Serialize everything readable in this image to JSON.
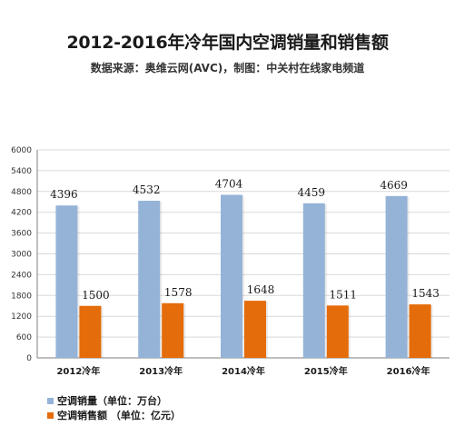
{
  "title": "2012-2016年冷年国内空调销量和销售额",
  "subtitle": "数据来源：奥维云网(AVC)，制图：中关村在线家电频道",
  "colors": {
    "sales_volume": "#95b3d7",
    "sales_amount": "#e46c0a",
    "grid": "#d9d9d9",
    "axis": "#7f7f7f"
  },
  "chart_data": {
    "type": "bar",
    "categories": [
      "2012冷年",
      "2013冷年",
      "2014冷年",
      "2015冷年",
      "2016冷年"
    ],
    "series": [
      {
        "name": "空调销量（单位：万台）",
        "values": [
          4396,
          4532,
          4704,
          4459,
          4669
        ]
      },
      {
        "name": "空调销售额 （单位：亿元）",
        "values": [
          1500,
          1578,
          1648,
          1511,
          1543
        ]
      }
    ],
    "ylim": [
      0,
      6000
    ],
    "yticks": [
      0,
      600,
      1200,
      1800,
      2400,
      3000,
      3600,
      4200,
      4800,
      5400,
      6000
    ],
    "grid": true,
    "legend": "bottom-left",
    "xlabel": "",
    "ylabel": ""
  }
}
